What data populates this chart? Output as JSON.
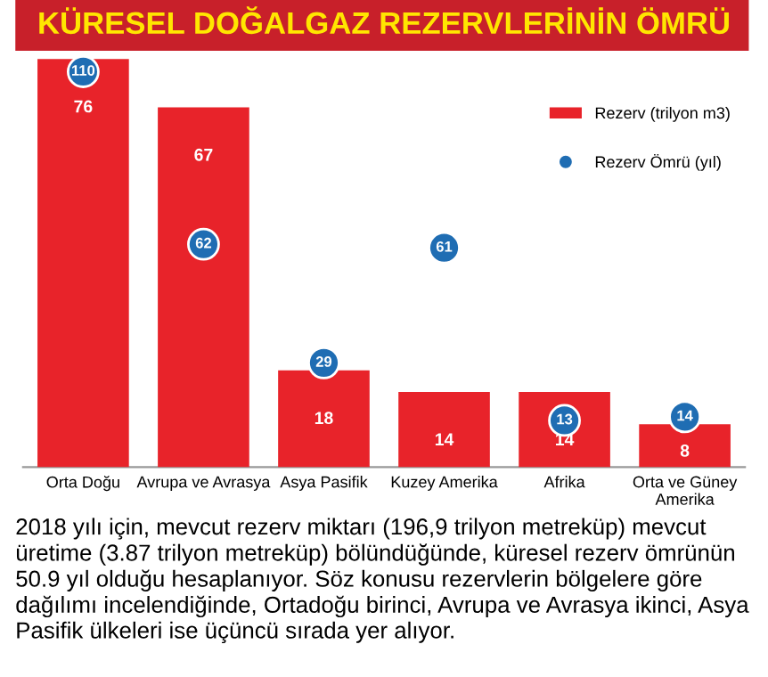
{
  "chart_data": {
    "type": "bar",
    "title": "KÜRESEL DOĞALGAZ REZERVLERİNİN ÖMRÜ",
    "categories": [
      "Orta Doğu",
      "Avrupa ve Avrasya",
      "Asya Pasifik",
      "Kuzey Amerika",
      "Afrika",
      "Orta ve Güney Amerika"
    ],
    "series": [
      {
        "name": "Rezerv (trilyon m3)",
        "color": "#e8232a",
        "values": [
          76,
          67,
          18,
          14,
          14,
          8
        ]
      },
      {
        "name": "Rezerv Ömrü (yıl)",
        "type": "scatter",
        "axis": "y2",
        "color": "#1f6db3",
        "values": [
          110,
          62,
          29,
          61,
          13,
          14
        ]
      }
    ],
    "data_labels": true,
    "tick_labels": "x",
    "legend": "top right",
    "grid": false,
    "annotations": [
      "2018 yılı için, mevcut rezerv miktarı (196,9 trilyon metreküp) mevcut üretime (3.87 trilyon metreküp) bölündüğünde, küresel rezerv ömrünün 50.9 yıl olduğu hesaplanıyor. Söz konusu rezervlerin bölgelere göre dağılımı incelendiğinde, Ortadoğu birinci, Avrupa ve Avrasya ikinci, Asya Pasifik ülkeleri ise üçüncü sırada yer alıyor."
    ]
  }
}
